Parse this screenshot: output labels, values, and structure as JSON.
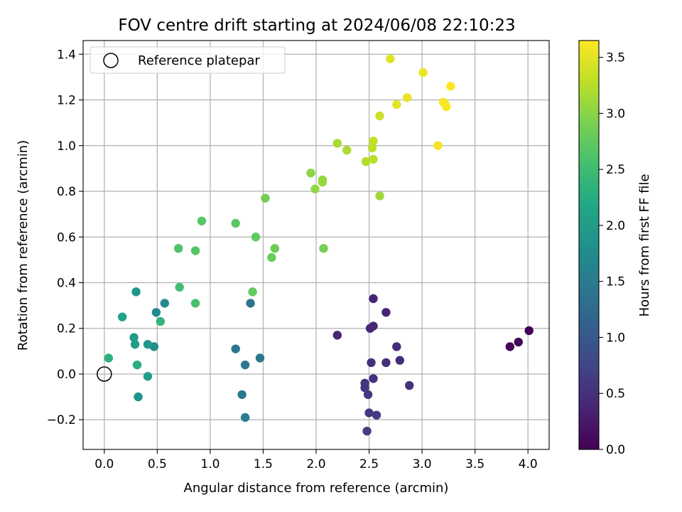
{
  "chart_data": {
    "type": "scatter",
    "title": "FOV centre drift starting at 2024/06/08 22:10:23",
    "xlabel": "Angular distance from reference (arcmin)",
    "ylabel": "Rotation from reference (arcmin)",
    "xlim": [
      -0.2,
      4.2
    ],
    "ylim": [
      -0.33,
      1.46
    ],
    "xticks": [
      0.0,
      0.5,
      1.0,
      1.5,
      2.0,
      2.5,
      3.0,
      3.5,
      4.0
    ],
    "xtick_labels": [
      "0.0",
      "0.5",
      "1.0",
      "1.5",
      "2.0",
      "2.5",
      "3.0",
      "3.5",
      "4.0"
    ],
    "yticks": [
      -0.2,
      0.0,
      0.2,
      0.4,
      0.6,
      0.8,
      1.0,
      1.2,
      1.4
    ],
    "ytick_labels": [
      "−0.2",
      "0.0",
      "0.2",
      "0.4",
      "0.6",
      "0.8",
      "1.0",
      "1.2",
      "1.4"
    ],
    "grid": true,
    "colorbar": {
      "label": "Hours from first FF file",
      "colormap": "viridis",
      "range": [
        0.0,
        3.65
      ],
      "ticks": [
        0.0,
        0.5,
        1.0,
        1.5,
        2.0,
        2.5,
        3.0,
        3.5
      ],
      "tick_labels": [
        "0.0",
        "0.5",
        "1.0",
        "1.5",
        "2.0",
        "2.5",
        "3.0",
        "3.5"
      ]
    },
    "legend": {
      "placement": "top-left",
      "entries": [
        {
          "label": "Reference platepar",
          "marker": "open-circle",
          "color": "#000000"
        }
      ]
    },
    "reference_point": {
      "x": 0.0,
      "y": 0.0
    },
    "points": [
      {
        "x": 4.01,
        "y": 0.19,
        "c": 0.0
      },
      {
        "x": 3.91,
        "y": 0.14,
        "c": 0.03
      },
      {
        "x": 3.83,
        "y": 0.12,
        "c": 0.06
      },
      {
        "x": 2.54,
        "y": 0.33,
        "c": 0.35
      },
      {
        "x": 2.66,
        "y": 0.27,
        "c": 0.37
      },
      {
        "x": 2.2,
        "y": 0.17,
        "c": 0.36
      },
      {
        "x": 2.54,
        "y": 0.21,
        "c": 0.39
      },
      {
        "x": 2.51,
        "y": 0.2,
        "c": 0.41
      },
      {
        "x": 2.76,
        "y": 0.12,
        "c": 0.45
      },
      {
        "x": 2.79,
        "y": 0.06,
        "c": 0.47
      },
      {
        "x": 2.66,
        "y": 0.05,
        "c": 0.49
      },
      {
        "x": 2.52,
        "y": 0.05,
        "c": 0.51
      },
      {
        "x": 2.88,
        "y": -0.05,
        "c": 0.52
      },
      {
        "x": 2.54,
        "y": -0.02,
        "c": 0.54
      },
      {
        "x": 2.46,
        "y": -0.04,
        "c": 0.56
      },
      {
        "x": 2.46,
        "y": -0.06,
        "c": 0.58
      },
      {
        "x": 2.49,
        "y": -0.09,
        "c": 0.6
      },
      {
        "x": 2.5,
        "y": -0.17,
        "c": 0.62
      },
      {
        "x": 2.57,
        "y": -0.18,
        "c": 0.64
      },
      {
        "x": 2.48,
        "y": -0.25,
        "c": 0.66
      },
      {
        "x": 1.38,
        "y": 0.31,
        "c": 1.38
      },
      {
        "x": 1.24,
        "y": 0.11,
        "c": 1.41
      },
      {
        "x": 1.47,
        "y": 0.07,
        "c": 1.44
      },
      {
        "x": 1.33,
        "y": 0.04,
        "c": 1.46
      },
      {
        "x": 1.3,
        "y": -0.09,
        "c": 1.49
      },
      {
        "x": 1.33,
        "y": -0.19,
        "c": 1.52
      },
      {
        "x": 0.57,
        "y": 0.31,
        "c": 1.7
      },
      {
        "x": 0.49,
        "y": 0.27,
        "c": 1.74
      },
      {
        "x": 0.47,
        "y": 0.12,
        "c": 1.79
      },
      {
        "x": 0.32,
        "y": -0.1,
        "c": 1.84
      },
      {
        "x": 0.3,
        "y": 0.36,
        "c": 1.9
      },
      {
        "x": 0.41,
        "y": 0.13,
        "c": 1.95
      },
      {
        "x": 0.28,
        "y": 0.16,
        "c": 1.99
      },
      {
        "x": 0.29,
        "y": 0.13,
        "c": 2.03
      },
      {
        "x": 0.41,
        "y": -0.01,
        "c": 2.07
      },
      {
        "x": 0.17,
        "y": 0.25,
        "c": 2.1
      },
      {
        "x": 0.31,
        "y": 0.04,
        "c": 2.25
      },
      {
        "x": 0.04,
        "y": 0.07,
        "c": 2.31
      },
      {
        "x": 0.53,
        "y": 0.23,
        "c": 2.38
      },
      {
        "x": 0.71,
        "y": 0.38,
        "c": 2.52
      },
      {
        "x": 0.86,
        "y": 0.31,
        "c": 2.58
      },
      {
        "x": 0.7,
        "y": 0.55,
        "c": 2.62
      },
      {
        "x": 0.86,
        "y": 0.54,
        "c": 2.66
      },
      {
        "x": 0.92,
        "y": 0.67,
        "c": 2.68
      },
      {
        "x": 1.24,
        "y": 0.66,
        "c": 2.72
      },
      {
        "x": 1.43,
        "y": 0.6,
        "c": 2.74
      },
      {
        "x": 1.4,
        "y": 0.36,
        "c": 2.76
      },
      {
        "x": 1.58,
        "y": 0.51,
        "c": 2.8
      },
      {
        "x": 1.61,
        "y": 0.55,
        "c": 2.83
      },
      {
        "x": 1.52,
        "y": 0.77,
        "c": 2.86
      },
      {
        "x": 2.07,
        "y": 0.55,
        "c": 2.9
      },
      {
        "x": 1.95,
        "y": 0.88,
        "c": 3.02
      },
      {
        "x": 1.99,
        "y": 0.81,
        "c": 3.05
      },
      {
        "x": 2.06,
        "y": 0.85,
        "c": 3.06
      },
      {
        "x": 2.06,
        "y": 0.84,
        "c": 3.08
      },
      {
        "x": 2.6,
        "y": 0.78,
        "c": 3.12
      },
      {
        "x": 2.2,
        "y": 1.01,
        "c": 3.16
      },
      {
        "x": 2.29,
        "y": 0.98,
        "c": 3.19
      },
      {
        "x": 2.47,
        "y": 0.93,
        "c": 3.22
      },
      {
        "x": 2.54,
        "y": 0.94,
        "c": 3.26
      },
      {
        "x": 2.53,
        "y": 0.99,
        "c": 3.28
      },
      {
        "x": 2.54,
        "y": 1.02,
        "c": 3.32
      },
      {
        "x": 2.6,
        "y": 1.13,
        "c": 3.38
      },
      {
        "x": 2.7,
        "y": 1.38,
        "c": 3.48
      },
      {
        "x": 2.76,
        "y": 1.18,
        "c": 3.5
      },
      {
        "x": 2.86,
        "y": 1.21,
        "c": 3.53
      },
      {
        "x": 3.01,
        "y": 1.32,
        "c": 3.55
      },
      {
        "x": 3.15,
        "y": 1.0,
        "c": 3.58
      },
      {
        "x": 3.2,
        "y": 1.19,
        "c": 3.6
      },
      {
        "x": 3.22,
        "y": 1.18,
        "c": 3.62
      },
      {
        "x": 3.23,
        "y": 1.17,
        "c": 3.63
      },
      {
        "x": 3.27,
        "y": 1.26,
        "c": 3.65
      }
    ]
  }
}
